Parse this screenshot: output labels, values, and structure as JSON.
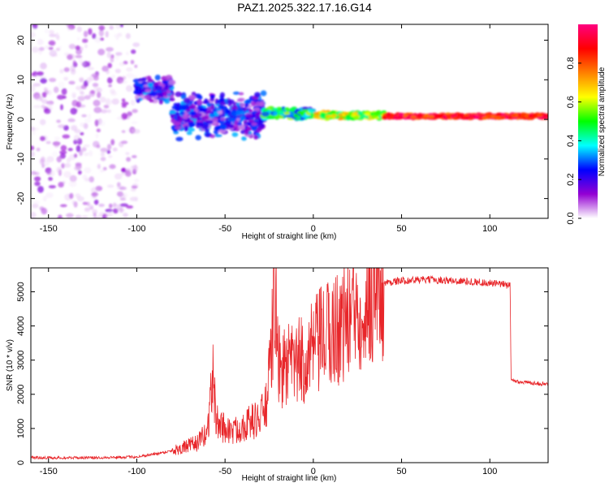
{
  "title": "PAZ1.2025.322.17.16.G14",
  "chart_data": [
    {
      "type": "heatmap",
      "xlabel": "Height of straight line (km)",
      "ylabel": "Frequency (Hz)",
      "xlim": [
        -160,
        133
      ],
      "ylim": [
        -25,
        24
      ],
      "xticks": [
        -150,
        -100,
        -50,
        0,
        50,
        100
      ],
      "yticks": [
        -20,
        -10,
        0,
        10,
        20
      ],
      "colorbar": {
        "label": "Normalized spectral amplitude",
        "range": [
          0,
          1
        ],
        "ticks": [
          0.0,
          0.2,
          0.4,
          0.6,
          0.8
        ],
        "tick_labels": [
          "0.0",
          "0.2",
          "0.4",
          "0.6",
          "0.8"
        ],
        "colormap": [
          "#ffffff",
          "#9400d3",
          "#0000ff",
          "#00ffff",
          "#00ff00",
          "#ffff00",
          "#ff8000",
          "#ff0000",
          "#ff0080"
        ]
      },
      "regions": [
        {
          "x_range": [
            -160,
            -100
          ],
          "freq_range": [
            -25,
            24
          ],
          "amplitude": [
            0.0,
            0.15
          ],
          "description": "scattered noise"
        },
        {
          "x_range": [
            -100,
            -80
          ],
          "freq_center": 7.5,
          "freq_halfwidth": 3.5,
          "amplitude": [
            0.05,
            0.35
          ]
        },
        {
          "x_range": [
            -80,
            -28
          ],
          "freq_center": 1,
          "freq_halfwidth": 6,
          "amplitude": [
            0.05,
            0.35
          ]
        },
        {
          "x_range": [
            -28,
            0
          ],
          "freq_center": 1.5,
          "freq_halfwidth": 1.5,
          "amplitude": [
            0.2,
            0.6
          ]
        },
        {
          "x_range": [
            0,
            40
          ],
          "freq_center": 1,
          "freq_halfwidth": 1,
          "amplitude": [
            0.4,
            0.75
          ]
        },
        {
          "x_range": [
            40,
            133
          ],
          "freq_center": 0.8,
          "freq_halfwidth": 0.6,
          "amplitude": [
            0.75,
            1.0
          ]
        }
      ]
    },
    {
      "type": "line",
      "xlabel": "Height of straight line (km)",
      "ylabel": "SNR (10 * v/v)",
      "xlim": [
        -160,
        133
      ],
      "ylim": [
        0,
        5700
      ],
      "xticks": [
        -150,
        -100,
        -50,
        0,
        50,
        100
      ],
      "yticks": [
        0,
        1000,
        2000,
        3000,
        4000,
        5000
      ],
      "series": [
        {
          "name": "SNR",
          "color": "#e8262a",
          "x": [
            -160,
            -140,
            -120,
            -100,
            -90,
            -80,
            -70,
            -65,
            -60,
            -57,
            -55,
            -50,
            -45,
            -40,
            -35,
            -30,
            -26,
            -23,
            -22,
            -20,
            -15,
            -10,
            -5,
            0,
            5,
            10,
            15,
            20,
            25,
            30,
            35,
            40,
            45,
            50,
            60,
            70,
            80,
            90,
            100,
            110,
            111.5,
            112,
            120,
            133
          ],
          "values": [
            150,
            140,
            150,
            170,
            250,
            350,
            500,
            600,
            900,
            2600,
            1200,
            1000,
            900,
            1100,
            1200,
            1300,
            1800,
            3800,
            5700,
            2800,
            2800,
            2900,
            3000,
            3300,
            3600,
            3800,
            4000,
            4300,
            4600,
            4900,
            5100,
            5250,
            5300,
            5320,
            5350,
            5350,
            5320,
            5300,
            5250,
            5200,
            5250,
            2400,
            2350,
            2300
          ]
        }
      ]
    }
  ]
}
